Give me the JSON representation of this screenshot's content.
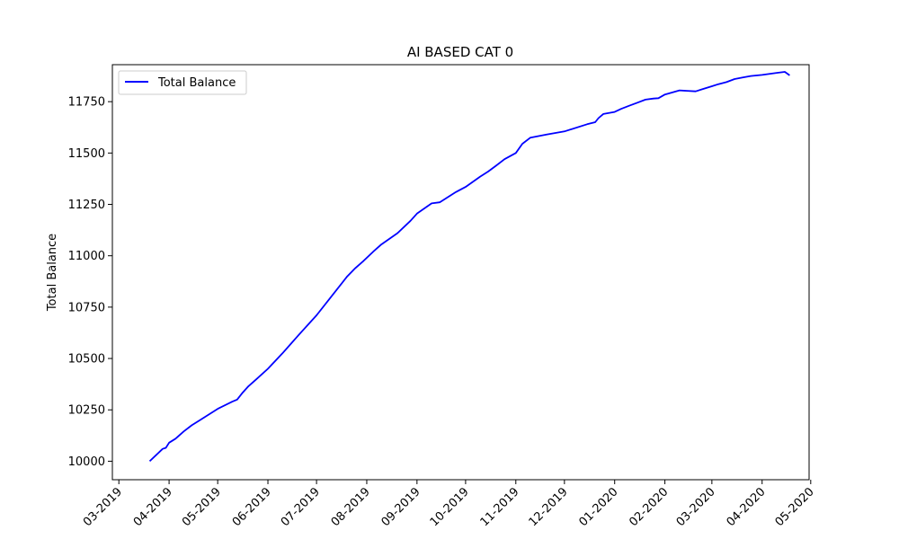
{
  "chart_data": {
    "type": "line",
    "title": "AI BASED CAT 0",
    "xlabel": "",
    "ylabel": "Total Balance",
    "x_ticks": [
      "03-2019",
      "04-2019",
      "05-2019",
      "06-2019",
      "07-2019",
      "08-2019",
      "09-2019",
      "10-2019",
      "11-2019",
      "12-2019",
      "01-2020",
      "02-2020",
      "03-2020",
      "04-2020",
      "05-2020"
    ],
    "y_ticks": [
      10000,
      10250,
      10500,
      10750,
      11000,
      11250,
      11500,
      11750
    ],
    "ylim": [
      9910,
      11930
    ],
    "xlim": [
      "2019-02-25",
      "2020-04-30"
    ],
    "grid": false,
    "legend_position": "top-left",
    "color": "#0000ff",
    "series": [
      {
        "name": "Total Balance",
        "x": [
          "2019-03-20",
          "2019-03-28",
          "2019-03-30",
          "2019-04-01",
          "2019-04-05",
          "2019-04-10",
          "2019-04-15",
          "2019-04-20",
          "2019-05-01",
          "2019-05-10",
          "2019-05-13",
          "2019-05-16",
          "2019-05-20",
          "2019-05-25",
          "2019-06-01",
          "2019-06-10",
          "2019-06-15",
          "2019-06-20",
          "2019-07-01",
          "2019-07-10",
          "2019-07-20",
          "2019-07-25",
          "2019-07-30",
          "2019-08-05",
          "2019-08-10",
          "2019-08-20",
          "2019-08-28",
          "2019-09-01",
          "2019-09-10",
          "2019-09-15",
          "2019-09-20",
          "2019-09-25",
          "2019-10-01",
          "2019-10-10",
          "2019-10-15",
          "2019-10-20",
          "2019-10-25",
          "2019-11-01",
          "2019-11-05",
          "2019-11-10",
          "2019-11-20",
          "2019-12-01",
          "2019-12-15",
          "2019-12-20",
          "2019-12-22",
          "2019-12-25",
          "2020-01-01",
          "2020-01-05",
          "2020-01-10",
          "2020-01-15",
          "2020-01-20",
          "2020-01-25",
          "2020-01-28",
          "2020-02-01",
          "2020-02-10",
          "2020-02-20",
          "2020-02-24",
          "2020-03-01",
          "2020-03-05",
          "2020-03-10",
          "2020-03-15",
          "2020-03-20",
          "2020-03-25",
          "2020-04-01",
          "2020-04-10",
          "2020-04-15",
          "2020-04-18"
        ],
        "y": [
          10000,
          10060,
          10065,
          10090,
          10110,
          10145,
          10175,
          10200,
          10255,
          10290,
          10300,
          10330,
          10365,
          10400,
          10450,
          10525,
          10570,
          10615,
          10710,
          10800,
          10900,
          10940,
          10975,
          11020,
          11055,
          11110,
          11170,
          11205,
          11255,
          11260,
          11285,
          11310,
          11335,
          11385,
          11410,
          11440,
          11470,
          11500,
          11545,
          11575,
          11590,
          11605,
          11640,
          11650,
          11670,
          11690,
          11700,
          11715,
          11730,
          11745,
          11760,
          11765,
          11767,
          11785,
          11805,
          11800,
          11810,
          11825,
          11835,
          11845,
          11860,
          11868,
          11875,
          11880,
          11890,
          11895,
          11878
        ]
      }
    ]
  }
}
